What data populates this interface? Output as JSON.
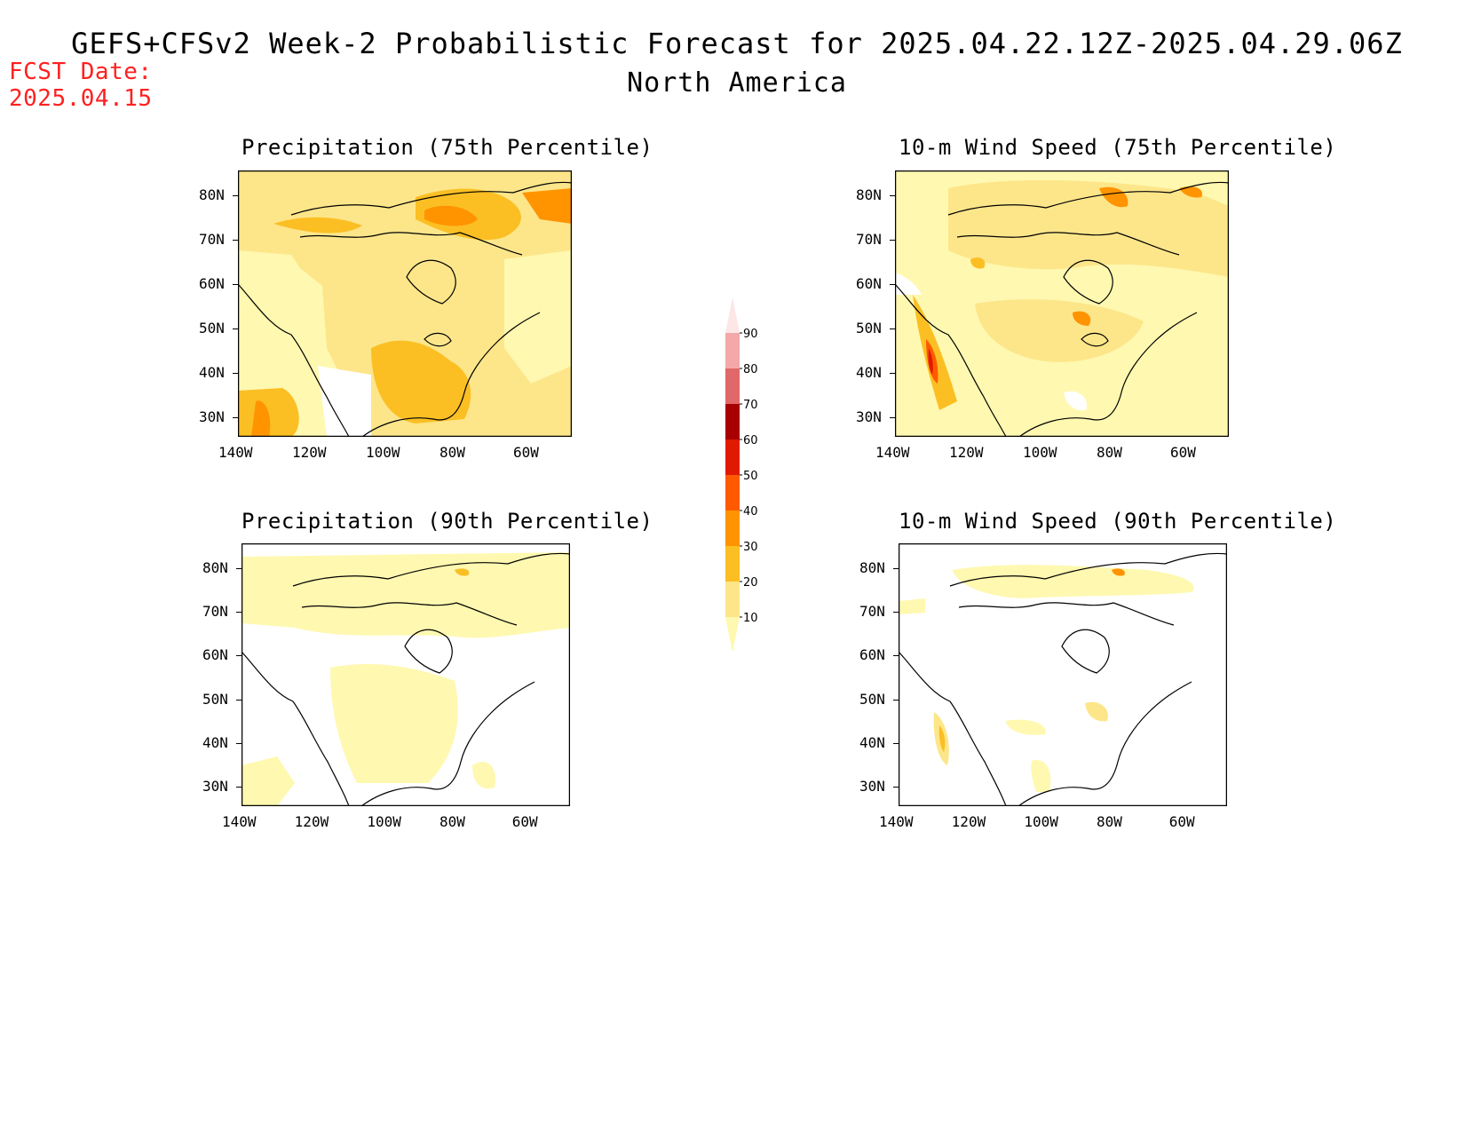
{
  "header": {
    "title": "GEFS+CFSv2 Week-2 Probabilistic Forecast for 2025.04.22.12Z-2025.04.29.06Z",
    "subtitle": "North America",
    "fcst_label": "FCST Date:",
    "fcst_date": "2025.04.15"
  },
  "panels": [
    {
      "title": "Precipitation (75th Percentile)"
    },
    {
      "title": "10-m Wind Speed (75th Percentile)"
    },
    {
      "title": "Precipitation (90th Percentile)"
    },
    {
      "title": "10-m Wind Speed (90th Percentile)"
    }
  ],
  "axes": {
    "lat_ticks": [
      "80N",
      "70N",
      "60N",
      "50N",
      "40N",
      "30N"
    ],
    "lon_ticks": [
      "140W",
      "120W",
      "100W",
      "80W",
      "60W"
    ]
  },
  "colorbar": {
    "levels": [
      "10",
      "20",
      "30",
      "40",
      "50",
      "60",
      "70",
      "80",
      "90"
    ],
    "colors": [
      "#fff8b0",
      "#fde68a",
      "#fbbf24",
      "#ff9400",
      "#ff5a00",
      "#e01a00",
      "#a80000",
      "#e06868",
      "#f4a8a8",
      "#fde6e6"
    ]
  }
}
